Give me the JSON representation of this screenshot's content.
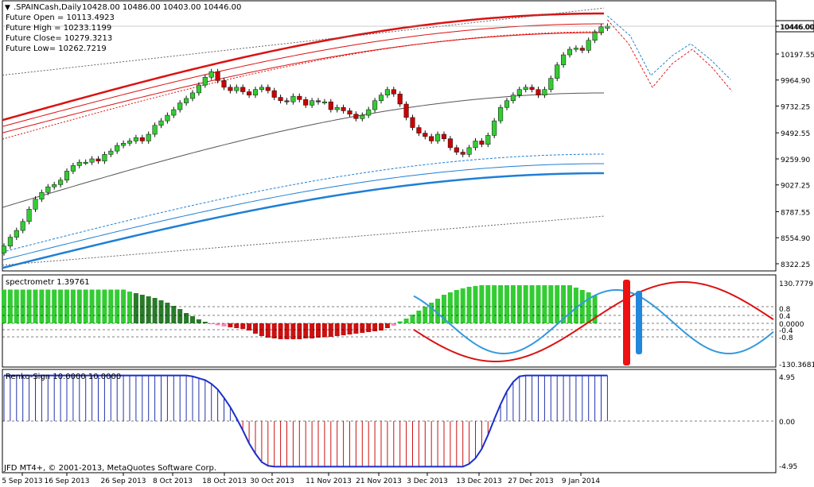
{
  "header": {
    "symbol": ".SPAINCash,Daily",
    "ohlc": "10428.00 10486.00 10403.00 10446.00",
    "future_lines": [
      "Future Open = 10113.4923",
      "Future High = 10233.1199",
      "Future Close= 10279.3213",
      "Future Low= 10262.7219"
    ]
  },
  "copyright": "JFD MT4+, © 2001-2013, MetaQuotes Software Corp.",
  "colors": {
    "bull": "#33cc33",
    "bear": "#cc0000",
    "band_red": "#dd1111",
    "band_blue": "#1e7fd6",
    "grid": "#000000"
  },
  "chart_data": [
    {
      "type": "candlestick",
      "panel": "price",
      "y_ticks": [
        "10446.00",
        "10197.55",
        "9964.90",
        "9732.25",
        "9492.55",
        "9259.90",
        "9027.25",
        "8787.55",
        "8554.90",
        "8322.25"
      ],
      "ylim": [
        8322.25,
        10446.0
      ],
      "current_price_label": "10446.00",
      "x_tick_labels": [
        "5 Sep 2013",
        "16 Sep 2013",
        "26 Sep 2013",
        "8 Oct 2013",
        "18 Oct 2013",
        "30 Oct 2013",
        "11 Nov 2013",
        "21 Nov 2013",
        "3 Dec 2013",
        "13 Dec 2013",
        "27 Dec 2013",
        "9 Jan 2014"
      ],
      "closes": [
        8480,
        8560,
        8620,
        8700,
        8810,
        8900,
        8960,
        9010,
        9030,
        9070,
        9150,
        9200,
        9230,
        9230,
        9260,
        9240,
        9300,
        9330,
        9380,
        9400,
        9420,
        9450,
        9420,
        9480,
        9560,
        9600,
        9650,
        9700,
        9760,
        9800,
        9850,
        9920,
        9990,
        10040,
        9960,
        9900,
        9870,
        9900,
        9860,
        9830,
        9880,
        9900,
        9870,
        9810,
        9780,
        9770,
        9820,
        9790,
        9740,
        9780,
        9770,
        9770,
        9700,
        9720,
        9690,
        9660,
        9620,
        9650,
        9700,
        9780,
        9830,
        9880,
        9840,
        9750,
        9630,
        9540,
        9490,
        9460,
        9420,
        9480,
        9440,
        9360,
        9320,
        9300,
        9360,
        9420,
        9390,
        9470,
        9600,
        9720,
        9780,
        9830,
        9880,
        9900,
        9880,
        9830,
        9880,
        9980,
        10100,
        10190,
        10240,
        10250,
        10230,
        10320,
        10390,
        10440,
        10446
      ],
      "opens": [
        8420,
        8480,
        8560,
        8620,
        8700,
        8810,
        8900,
        8960,
        9010,
        9030,
        9070,
        9150,
        9200,
        9230,
        9230,
        9260,
        9240,
        9300,
        9330,
        9380,
        9400,
        9420,
        9450,
        9420,
        9480,
        9560,
        9600,
        9650,
        9700,
        9760,
        9800,
        9850,
        9920,
        9990,
        10040,
        9960,
        9900,
        9870,
        9900,
        9860,
        9830,
        9880,
        9900,
        9870,
        9810,
        9780,
        9770,
        9820,
        9790,
        9740,
        9780,
        9770,
        9770,
        9700,
        9720,
        9690,
        9660,
        9620,
        9650,
        9700,
        9780,
        9830,
        9880,
        9840,
        9750,
        9630,
        9540,
        9490,
        9460,
        9420,
        9480,
        9440,
        9360,
        9320,
        9300,
        9360,
        9420,
        9390,
        9470,
        9600,
        9720,
        9780,
        9830,
        9880,
        9900,
        9880,
        9830,
        9880,
        9980,
        10100,
        10190,
        10240,
        10250,
        10230,
        10320,
        10390,
        10428
      ],
      "projection_label": "Future Close"
    },
    {
      "type": "histogram",
      "panel": "spectrometr",
      "title": "spectrometr 1.39761",
      "y_ticks": [
        "130.7779",
        "0.8",
        "0.4",
        "0.0000",
        "-0.4",
        "-0.8",
        "-130.3681"
      ],
      "ylim": [
        -130.3681,
        130.7779
      ],
      "values": [
        85,
        85,
        85,
        85,
        85,
        85,
        85,
        85,
        85,
        85,
        85,
        85,
        85,
        85,
        85,
        85,
        85,
        85,
        85,
        85,
        80,
        76,
        72,
        68,
        64,
        58,
        52,
        44,
        36,
        26,
        18,
        10,
        4,
        -2,
        -5,
        -8,
        -10,
        -12,
        -14,
        -18,
        -26,
        -32,
        -36,
        -38,
        -40,
        -40,
        -40,
        -40,
        -38,
        -38,
        -36,
        -35,
        -34,
        -32,
        -30,
        -28,
        -26,
        -24,
        -22,
        -20,
        -18,
        -12,
        -6,
        5,
        12,
        22,
        32,
        42,
        52,
        62,
        72,
        78,
        84,
        88,
        92,
        94,
        96,
        96,
        96,
        96,
        96,
        96,
        96,
        96,
        96,
        96,
        96,
        96,
        96,
        96,
        96,
        90,
        84,
        78,
        70
      ]
    },
    {
      "type": "histogram",
      "panel": "renko",
      "title": "Renko-Sign 10.0000 10.0000",
      "y_ticks": [
        "4.95",
        "0.00",
        "-4.95"
      ],
      "ylim": [
        -4.95,
        4.95
      ],
      "values": [
        4.9,
        4.9,
        4.9,
        4.9,
        4.9,
        4.9,
        4.9,
        4.9,
        4.9,
        4.9,
        4.9,
        4.9,
        4.9,
        4.9,
        4.9,
        4.9,
        4.9,
        4.9,
        4.9,
        4.9,
        4.9,
        4.9,
        4.9,
        4.9,
        4.9,
        4.9,
        4.9,
        4.9,
        4.9,
        4.9,
        4.8,
        4.6,
        4.4,
        4.0,
        3.4,
        2.5,
        1.5,
        0.3,
        -1,
        -2.4,
        -3.5,
        -4.4,
        -4.8,
        -4.9,
        -4.9,
        -4.9,
        -4.9,
        -4.9,
        -4.9,
        -4.9,
        -4.9,
        -4.9,
        -4.9,
        -4.9,
        -4.9,
        -4.9,
        -4.9,
        -4.9,
        -4.9,
        -4.9,
        -4.9,
        -4.9,
        -4.9,
        -4.9,
        -4.9,
        -4.9,
        -4.9,
        -4.9,
        -4.9,
        -4.9,
        -4.9,
        -4.9,
        -4.9,
        -4.9,
        -4.6,
        -4,
        -3,
        -1.5,
        0.2,
        1.8,
        3.2,
        4.2,
        4.8,
        4.9,
        4.9,
        4.9,
        4.9,
        4.9,
        4.9,
        4.9,
        4.9,
        4.9,
        4.9,
        4.9,
        4.9,
        4.9,
        4.9
      ]
    }
  ]
}
